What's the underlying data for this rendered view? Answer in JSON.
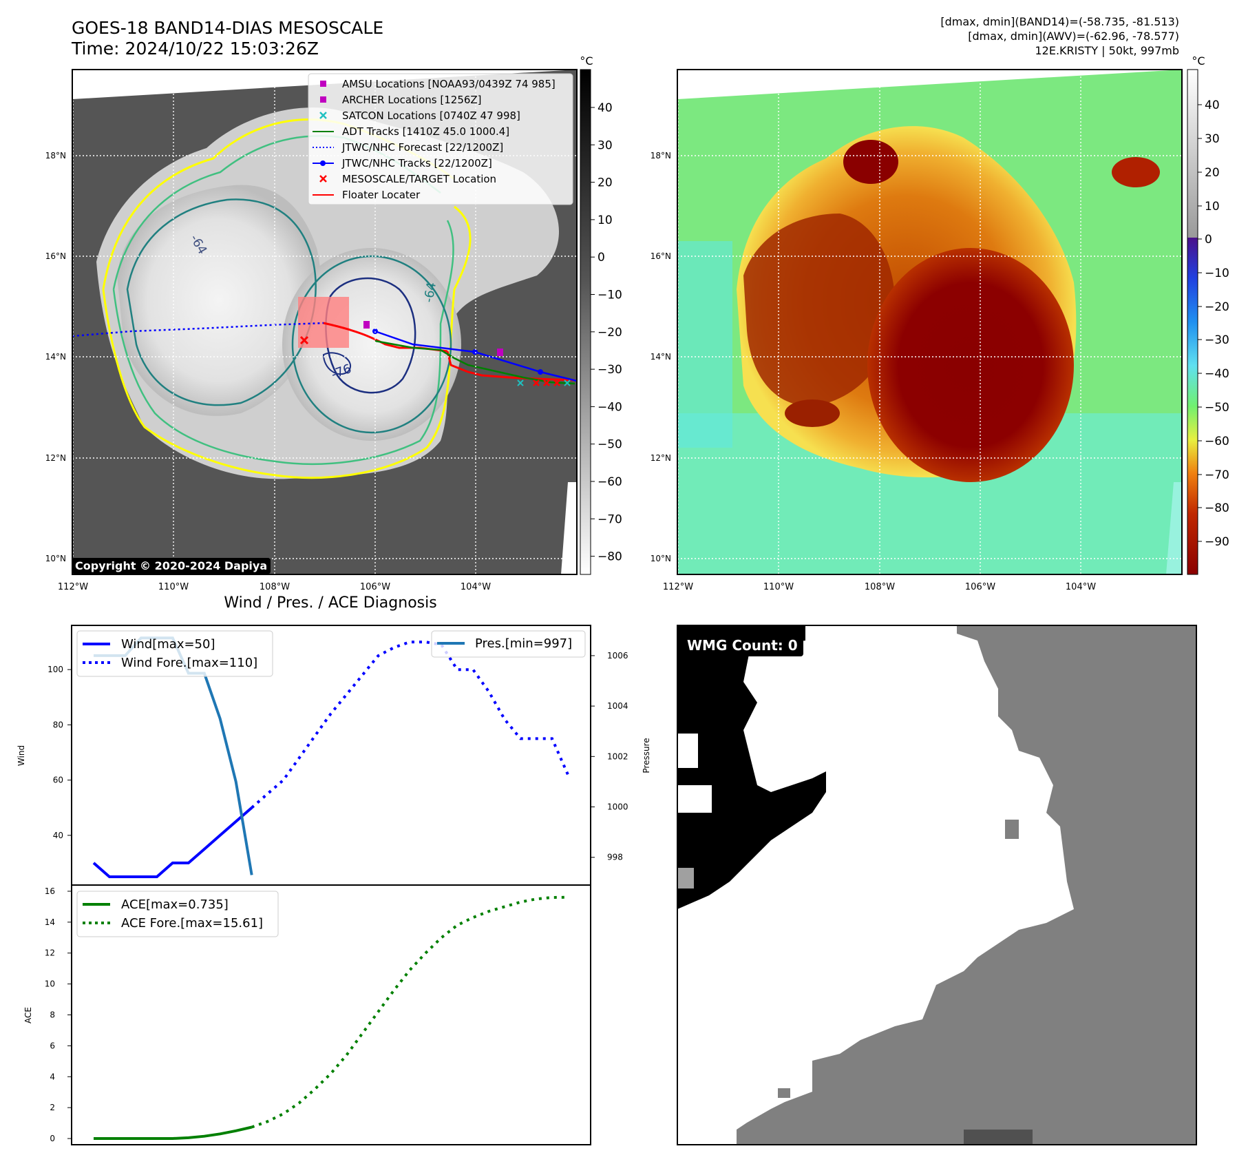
{
  "header": {
    "title_line1": "GOES-18 BAND14-DIAS MESOSCALE",
    "title_line2": "Time: 2024/10/22 15:03:26Z",
    "stats_line1": "[dmax, dmin](BAND14)=(-58.735, -81.513)",
    "stats_line2": "[dmax, dmin](AWV)=(-62.96, -78.577)",
    "stats_line3": "12E.KRISTY | 50kt, 997mb"
  },
  "map": {
    "lon_labels": [
      "112°W",
      "110°W",
      "108°W",
      "106°W",
      "104°W"
    ],
    "lat_labels": [
      "18°N",
      "16°N",
      "14°N",
      "12°N",
      "10°N"
    ],
    "copyright": "Copyright © 2020-2024 Dapiya",
    "contour_labels": [
      "-64",
      "-64",
      "-76"
    ],
    "legend": [
      {
        "label": "AMSU Locations [NOAA93/0439Z 74 985]",
        "color": "#c000c0",
        "marker": "square"
      },
      {
        "label": "ARCHER Locations [1256Z]",
        "color": "#c000c0",
        "marker": "square"
      },
      {
        "label": "SATCON Locations [0740Z 47 998]",
        "color": "#20c0c0",
        "marker": "x"
      },
      {
        "label": "ADT Tracks [1410Z 45.0 1000.4]",
        "color": "#008000",
        "marker": "line"
      },
      {
        "label": "JTWC/NHC Forecast [22/1200Z]",
        "color": "#0000ff",
        "marker": "dotted"
      },
      {
        "label": "JTWC/NHC Tracks [22/1200Z]",
        "color": "#0000ff",
        "marker": "line-dot"
      },
      {
        "label": "MESOSCALE/TARGET Location",
        "color": "#ff0000",
        "marker": "x"
      },
      {
        "label": "Floater Locater",
        "color": "#ff0000",
        "marker": "line"
      }
    ],
    "colorbar_gray": {
      "unit": "°C",
      "ticks": [
        "40",
        "30",
        "20",
        "10",
        "0",
        "−10",
        "−20",
        "−30",
        "−40",
        "−50",
        "−60",
        "−70",
        "−80"
      ]
    },
    "colorbar_awv": {
      "unit": "°C",
      "ticks": [
        "40",
        "30",
        "20",
        "10",
        "0",
        "−10",
        "−20",
        "−30",
        "−40",
        "−50",
        "−60",
        "−70",
        "−80",
        "−90"
      ]
    }
  },
  "chart_data": [
    {
      "type": "line",
      "title": "Wind / Pres. / ACE Diagnosis",
      "ylabel": "Wind",
      "y2label": "Pressure",
      "ylim": [
        22,
        116
      ],
      "y2lim": [
        996.9,
        1007.2
      ],
      "yticks": [
        40,
        60,
        80,
        100
      ],
      "y2ticks": [
        998,
        1000,
        1002,
        1004,
        1006
      ],
      "x": [
        0,
        1,
        2,
        3,
        4,
        5,
        6,
        7,
        8,
        9,
        10,
        11,
        12,
        13,
        14,
        15,
        16,
        17,
        18,
        19,
        20,
        21,
        22,
        23,
        24,
        25,
        26,
        27,
        28,
        29,
        30
      ],
      "series": [
        {
          "name": "Wind[max=50]",
          "axis": "left",
          "style": "solid",
          "color": "#0000ff",
          "x": [
            0,
            1,
            2,
            3,
            4,
            5,
            6,
            7,
            8,
            9,
            10
          ],
          "values": [
            30,
            25,
            25,
            25,
            25,
            30,
            30,
            35,
            40,
            45,
            50
          ]
        },
        {
          "name": "Wind Fore.[max=110]",
          "axis": "left",
          "style": "dotted",
          "color": "#0000ff",
          "x": [
            10,
            11,
            12,
            13,
            14,
            15,
            16,
            17,
            18,
            19,
            20,
            21,
            22,
            23,
            24,
            25,
            26,
            27,
            28,
            29,
            30
          ],
          "values": [
            50,
            55,
            60,
            68,
            76,
            84,
            91,
            98,
            105,
            108,
            110,
            110,
            109,
            100,
            100,
            92,
            82,
            75,
            75,
            75,
            62
          ]
        },
        {
          "name": "Pres.[min=997]",
          "axis": "right",
          "style": "solid",
          "color": "#1f77b4",
          "x": [
            0,
            1,
            2,
            3,
            4,
            5,
            6,
            7,
            8,
            9,
            10
          ],
          "values": [
            1006.0,
            1006.0,
            1006.0,
            1006.7,
            1006.7,
            1006.7,
            1005.3,
            1005.3,
            1003.5,
            1001.0,
            997.3
          ]
        }
      ]
    },
    {
      "type": "line",
      "ylabel": "ACE",
      "ylim": [
        -0.4,
        16.4
      ],
      "yticks": [
        0,
        2,
        4,
        6,
        8,
        10,
        12,
        14,
        16
      ],
      "series": [
        {
          "name": "ACE[max=0.735]",
          "style": "solid",
          "color": "#008000",
          "x": [
            0,
            1,
            2,
            3,
            4,
            5,
            6,
            7,
            8,
            9,
            10
          ],
          "values": [
            0,
            0,
            0,
            0,
            0,
            0,
            0.05,
            0.15,
            0.3,
            0.5,
            0.735
          ]
        },
        {
          "name": "ACE Fore.[max=15.61]",
          "style": "dotted",
          "color": "#008000",
          "x": [
            10,
            11,
            12,
            13,
            14,
            15,
            16,
            17,
            18,
            19,
            20,
            21,
            22,
            23,
            24,
            25,
            26,
            27,
            28,
            29,
            30
          ],
          "values": [
            0.735,
            1.1,
            1.6,
            2.3,
            3.2,
            4.2,
            5.4,
            6.8,
            8.2,
            9.6,
            10.9,
            12.0,
            13.0,
            13.8,
            14.3,
            14.7,
            15.0,
            15.3,
            15.5,
            15.6,
            15.61
          ]
        }
      ]
    }
  ],
  "wmg": {
    "label": "WMG Count: 0"
  }
}
